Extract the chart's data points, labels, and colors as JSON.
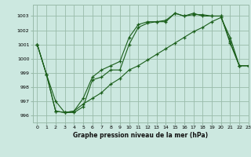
{
  "bg_color": "#cce8e0",
  "grid_color": "#99bbaa",
  "line_color": "#1a5e1a",
  "title": "Graphe pression niveau de la mer (hPa)",
  "xlim": [
    -0.5,
    23
  ],
  "ylim": [
    995.5,
    1003.8
  ],
  "yticks": [
    996,
    997,
    998,
    999,
    1000,
    1001,
    1002,
    1003
  ],
  "xticks": [
    0,
    1,
    2,
    3,
    4,
    5,
    6,
    7,
    8,
    9,
    10,
    11,
    12,
    13,
    14,
    15,
    16,
    17,
    18,
    19,
    20,
    21,
    22,
    23
  ],
  "line1_x": [
    0,
    1,
    2,
    3,
    4,
    5,
    6,
    7,
    8,
    9,
    10,
    11,
    12,
    13,
    14,
    15,
    16,
    17,
    18,
    19,
    20,
    21,
    22,
    23
  ],
  "line1_y": [
    1001.0,
    998.9,
    997.0,
    996.2,
    996.2,
    996.6,
    998.5,
    998.7,
    999.2,
    999.2,
    1001.0,
    1002.2,
    1002.5,
    1002.6,
    1002.6,
    1003.2,
    1003.0,
    1003.2,
    1003.0,
    1003.0,
    1003.0,
    1001.1,
    999.5,
    999.5
  ],
  "line2_x": [
    0,
    1,
    2,
    3,
    4,
    5,
    6,
    7,
    8,
    9,
    10,
    11,
    12,
    13,
    14,
    15,
    16,
    17,
    18,
    19,
    20,
    21,
    22,
    23
  ],
  "line2_y": [
    1001.0,
    998.9,
    996.3,
    996.2,
    996.3,
    997.2,
    998.7,
    999.2,
    999.5,
    999.8,
    1001.5,
    1002.4,
    1002.6,
    1002.6,
    1002.7,
    1003.2,
    1003.0,
    1003.1,
    1003.1,
    1003.0,
    1003.0,
    1001.2,
    999.5,
    999.5
  ],
  "line3_x": [
    0,
    1,
    2,
    3,
    4,
    5,
    6,
    7,
    8,
    9,
    10,
    11,
    12,
    13,
    14,
    15,
    16,
    17,
    18,
    19,
    20,
    21,
    22,
    23
  ],
  "line3_y": [
    1001.0,
    998.9,
    996.3,
    996.2,
    996.3,
    996.8,
    997.2,
    997.6,
    998.2,
    998.6,
    999.2,
    999.5,
    999.9,
    1000.3,
    1000.7,
    1001.1,
    1001.5,
    1001.9,
    1002.2,
    1002.6,
    1002.9,
    1001.5,
    999.5,
    999.5
  ],
  "title_fontsize": 5.5,
  "tick_fontsize": 4.5,
  "lw": 0.8,
  "ms": 2.5
}
